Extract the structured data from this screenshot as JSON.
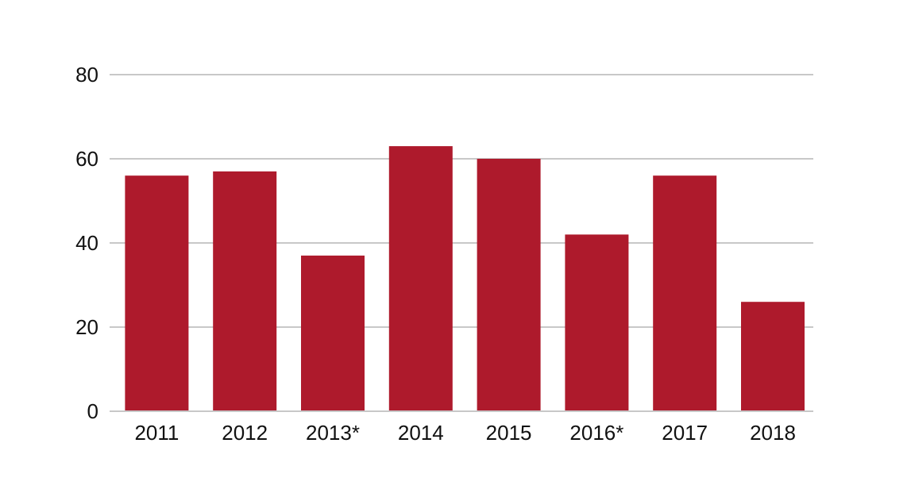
{
  "chart_data": {
    "type": "bar",
    "categories": [
      "2011",
      "2012",
      "2013*",
      "2014",
      "2015",
      "2016*",
      "2017",
      "2018"
    ],
    "values": [
      56,
      57,
      37,
      63,
      60,
      42,
      56,
      26
    ],
    "title": "",
    "xlabel": "",
    "ylabel": "",
    "ylim": [
      0,
      80
    ],
    "yticks": [
      0,
      20,
      40,
      60,
      80
    ],
    "grid": true,
    "legend": "none",
    "bar_color": "#ae1a2c",
    "grid_color": "#c8c8c8"
  }
}
